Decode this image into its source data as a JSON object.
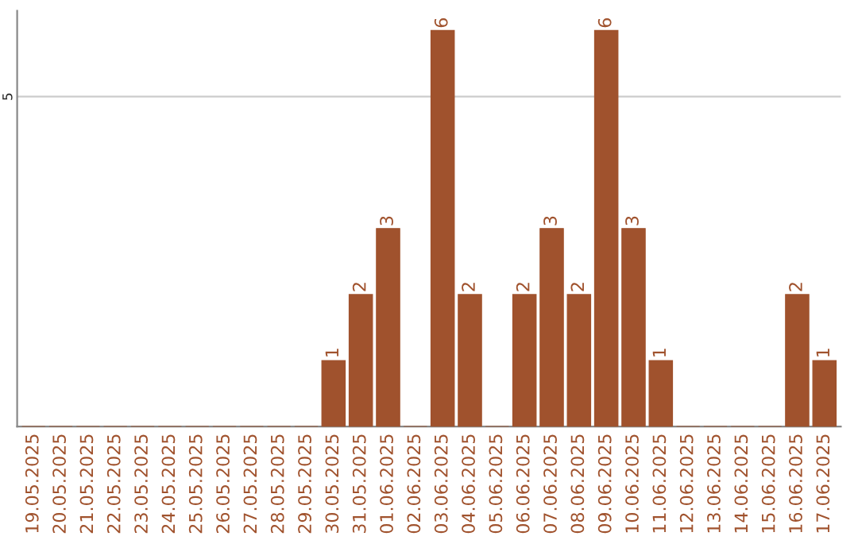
{
  "chart_data": {
    "type": "bar",
    "categories": [
      "19.05.2025",
      "20.05.2025",
      "21.05.2025",
      "22.05.2025",
      "23.05.2025",
      "24.05.2025",
      "25.05.2025",
      "26.05.2025",
      "27.05.2025",
      "28.05.2025",
      "29.05.2025",
      "30.05.2025",
      "31.05.2025",
      "01.06.2025",
      "02.06.2025",
      "03.06.2025",
      "04.06.2025",
      "05.06.2025",
      "06.06.2025",
      "07.06.2025",
      "08.06.2025",
      "09.06.2025",
      "10.06.2025",
      "11.06.2025",
      "12.06.2025",
      "13.06.2025",
      "14.06.2025",
      "15.06.2025",
      "16.06.2025",
      "17.06.2025"
    ],
    "values": [
      0,
      0,
      0,
      0,
      0,
      0,
      0,
      0,
      0,
      0,
      0,
      1,
      2,
      3,
      0,
      6,
      2,
      0,
      2,
      3,
      2,
      6,
      3,
      1,
      0,
      0,
      0,
      0,
      2,
      1
    ],
    "value_labels": [
      null,
      null,
      null,
      null,
      null,
      null,
      null,
      null,
      null,
      null,
      null,
      "1",
      "2",
      "3",
      null,
      "6",
      "2",
      null,
      "2",
      "3",
      "2",
      "6",
      "3",
      "1",
      null,
      null,
      null,
      null,
      "2",
      "1"
    ],
    "color": "#a0522d",
    "ylim": [
      0,
      6.3
    ],
    "yticks": [
      5
    ],
    "grid": "y"
  }
}
